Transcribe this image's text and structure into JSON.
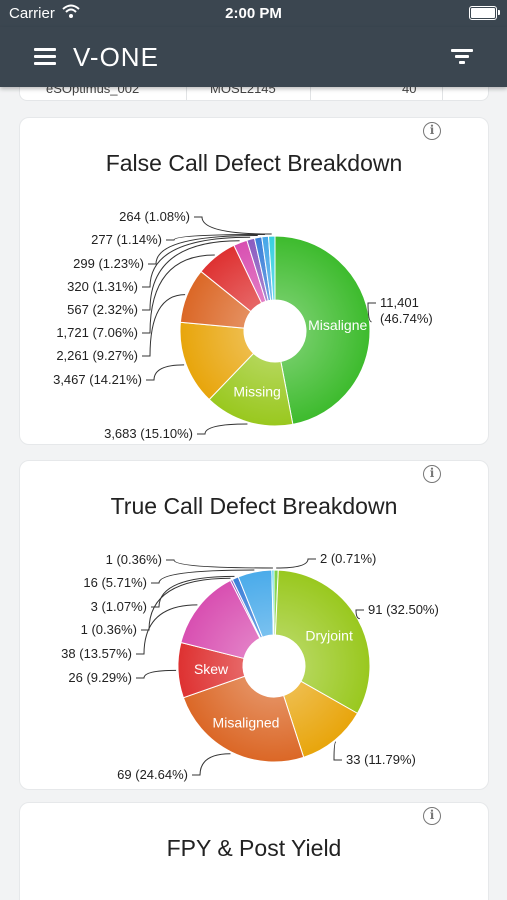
{
  "status_bar": {
    "carrier": "Carrier",
    "time": "2:00 PM"
  },
  "nav": {
    "brand": "V-ONE"
  },
  "table_remnant": {
    "cells": [
      "eSOptimus_002",
      "MOSL2145",
      "40"
    ]
  },
  "cards": [
    {
      "title": "False Call Defect Breakdown",
      "chart_data": {
        "type": "pie",
        "title": "False Call Defect Breakdown",
        "slices": [
          {
            "label": "Misaligne",
            "value": 11401,
            "text": "11,401\n(46.74%)",
            "color": "#3dbb2d"
          },
          {
            "label": "Missing",
            "value": 3683,
            "text": "3,683 (15.10%)",
            "color": "#99c81e"
          },
          {
            "label": "",
            "value": 3467,
            "text": "3,467 (14.21%)",
            "color": "#e8a50b"
          },
          {
            "label": "",
            "value": 2261,
            "text": "2,261 (9.27%)",
            "color": "#db6726"
          },
          {
            "label": "",
            "value": 1721,
            "text": "1,721 (7.06%)",
            "color": "#de3131"
          },
          {
            "label": "",
            "value": 567,
            "text": "567 (2.32%)",
            "color": "#d84fb1"
          },
          {
            "label": "",
            "value": 320,
            "text": "320 (1.31%)",
            "color": "#8a5bc0"
          },
          {
            "label": "",
            "value": 299,
            "text": "299 (1.23%)",
            "color": "#3b7fd8"
          },
          {
            "label": "",
            "value": 277,
            "text": "277 (1.14%)",
            "color": "#46a6e8"
          },
          {
            "label": "",
            "value": 264,
            "text": "264 (1.08%)",
            "color": "#38cfe0"
          }
        ]
      }
    },
    {
      "title": "True Call Defect Breakdown",
      "chart_data": {
        "type": "pie",
        "title": "True Call Defect Breakdown",
        "slices": [
          {
            "label": "",
            "value": 2,
            "text": "2 (0.71%)",
            "color": "#7bd24a"
          },
          {
            "label": "Dryjoint",
            "value": 91,
            "text": "91 (32.50%)",
            "color": "#99c81e"
          },
          {
            "label": "",
            "value": 33,
            "text": "33 (11.79%)",
            "color": "#e8a50b"
          },
          {
            "label": "Misaligned",
            "value": 69,
            "text": "69 (24.64%)",
            "color": "#db6726"
          },
          {
            "label": "Skew",
            "value": 26,
            "text": "26 (9.29%)",
            "color": "#de3131"
          },
          {
            "label": "",
            "value": 38,
            "text": "38 (13.57%)",
            "color": "#d84fb1"
          },
          {
            "label": "",
            "value": 1,
            "text": "1 (0.36%)",
            "color": "#8a5bc0"
          },
          {
            "label": "",
            "value": 3,
            "text": "3 (1.07%)",
            "color": "#3b7fd8"
          },
          {
            "label": "",
            "value": 16,
            "text": "16 (5.71%)",
            "color": "#4aabea"
          },
          {
            "label": "",
            "value": 1,
            "text": "1 (0.36%)",
            "color": "#38cfe0"
          }
        ]
      }
    },
    {
      "title": "FPY & Post Yield"
    }
  ]
}
